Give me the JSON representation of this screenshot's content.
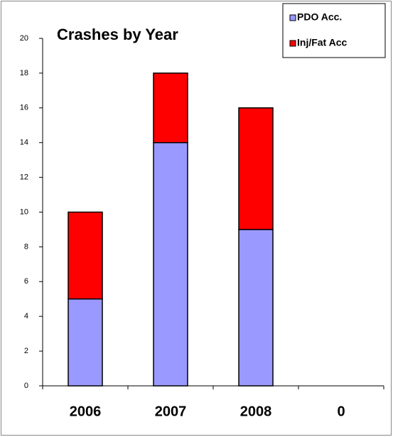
{
  "chart_data": {
    "type": "stacked_bar",
    "title": "Crashes by Year",
    "categories": [
      "2006",
      "2007",
      "2008",
      "0"
    ],
    "series": [
      {
        "name": "PDO Acc.",
        "color": "#9999ff",
        "values": [
          5,
          14,
          9,
          null
        ]
      },
      {
        "name": "Inj/Fat Acc",
        "color": "#ff0000",
        "values": [
          5,
          4,
          7,
          null
        ]
      }
    ],
    "ylim": [
      0,
      20
    ],
    "yticks": [
      0,
      2,
      4,
      6,
      8,
      10,
      12,
      14,
      16,
      18,
      20
    ],
    "legend": "top-right"
  }
}
